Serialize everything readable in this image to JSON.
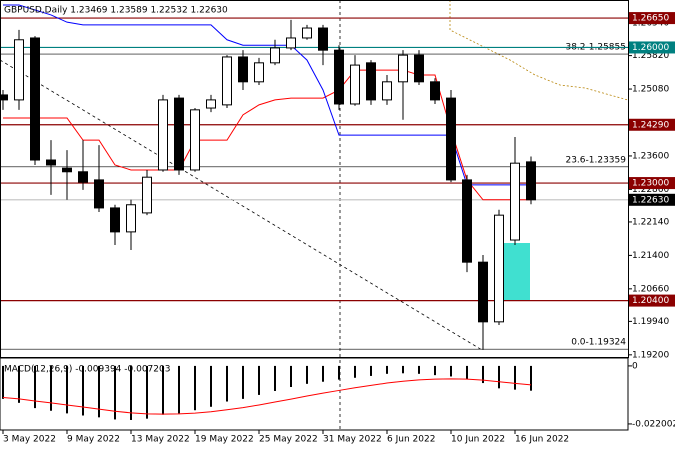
{
  "chart_data": [
    {
      "type": "candlestick",
      "title": "GBPUSD,Daily  1.23469 1.23589 1.22532 1.22630",
      "categories": [
        "3 May 2022",
        null,
        null,
        null,
        "9 May 2022",
        null,
        null,
        null,
        "13 May 2022",
        null,
        null,
        null,
        "19 May 2022",
        null,
        null,
        null,
        "25 May 2022",
        null,
        null,
        null,
        "31 May 2022",
        null,
        null,
        null,
        "6 Jun 2022",
        null,
        null,
        null,
        "10 Jun 2022",
        null,
        null,
        null,
        "16 Jun 2022",
        null
      ],
      "open": [
        1.2495,
        1.2484,
        1.2621,
        1.2351,
        1.2333,
        1.2325,
        1.2307,
        1.2245,
        1.2192,
        1.2234,
        1.2329,
        1.2488,
        1.2329,
        1.2466,
        1.2473,
        1.2579,
        1.2524,
        1.2566,
        1.2599,
        1.2621,
        1.2643,
        1.2594,
        1.2475,
        1.2566,
        1.2484,
        1.2524,
        1.2583,
        1.2524,
        1.2488,
        1.2307,
        1.2125,
        1.1993,
        1.2174,
        1.23469
      ],
      "high": [
        1.2506,
        1.2639,
        1.2625,
        1.2395,
        1.2373,
        1.2395,
        1.2384,
        1.2252,
        1.2263,
        1.2329,
        1.2495,
        1.2495,
        1.2466,
        1.2495,
        1.2583,
        1.2594,
        1.2577,
        1.2617,
        1.2661,
        1.265,
        1.265,
        1.2605,
        1.2583,
        1.2572,
        1.2539,
        1.2594,
        1.2594,
        1.2532,
        1.2506,
        1.2318,
        1.2141,
        1.2241,
        1.2402,
        1.23589
      ],
      "low": [
        1.2462,
        1.2462,
        1.234,
        1.2274,
        1.2263,
        1.2285,
        1.2236,
        1.2163,
        1.2152,
        1.2229,
        1.2325,
        1.2318,
        1.2325,
        1.2457,
        1.2466,
        1.2506,
        1.2517,
        1.2561,
        1.2594,
        1.2617,
        1.2561,
        1.2462,
        1.2471,
        1.2473,
        1.2473,
        1.244,
        1.2517,
        1.2475,
        1.2302,
        1.2103,
        1.1931,
        1.1986,
        1.2163,
        1.22532
      ],
      "close": [
        1.2484,
        1.2617,
        1.2351,
        1.234,
        1.2325,
        1.2302,
        1.2245,
        1.2192,
        1.2252,
        1.2313,
        1.2484,
        1.2329,
        1.2462,
        1.2484,
        1.2579,
        1.2524,
        1.2566,
        1.2599,
        1.2621,
        1.2643,
        1.2594,
        1.2475,
        1.2561,
        1.2484,
        1.2524,
        1.2583,
        1.2524,
        1.2484,
        1.2307,
        1.2125,
        1.1993,
        1.2229,
        1.2344,
        1.2263
      ],
      "up_color": "#ffffff",
      "down_color": "#000000",
      "series": [
        {
          "color": "#ff0000",
          "values": [
            1.2444,
            1.2444,
            1.2444,
            1.2444,
            1.2444,
            1.2395,
            1.2395,
            1.234,
            1.2329,
            1.2329,
            1.2329,
            1.2329,
            1.2395,
            1.2395,
            1.2395,
            1.2451,
            1.2473,
            1.2484,
            1.2488,
            1.2488,
            1.2488,
            1.2506,
            1.255,
            1.255,
            1.255,
            1.255,
            1.2539,
            1.2539,
            1.2417,
            1.2307,
            1.2263,
            1.2263,
            1.2263,
            1.2263
          ]
        },
        {
          "color": "#0000ff",
          "values": [
            1.2694,
            1.2694,
            1.2683,
            1.2672,
            1.2656,
            1.265,
            1.265,
            1.265,
            1.265,
            1.265,
            1.265,
            1.265,
            1.265,
            1.265,
            1.2617,
            1.2605,
            1.2605,
            1.2605,
            1.2605,
            1.2572,
            1.2506,
            1.2406,
            1.2406,
            1.2406,
            1.2406,
            1.2406,
            1.2406,
            1.2406,
            1.2406,
            1.2296,
            1.2296,
            1.2296,
            1.2296,
            1.2296
          ]
        }
      ],
      "ylim": [
        1.1913,
        1.2705
      ],
      "yticks": [
        {
          "value": 1.2654,
          "label": "1.26540"
        },
        {
          "value": 1.2582,
          "label": "1.25820"
        },
        {
          "value": 1.2508,
          "label": "1.25080"
        },
        {
          "value": 1.236,
          "label": "1.23600"
        },
        {
          "value": 1.2286,
          "label": "1.22860"
        },
        {
          "value": 1.2214,
          "label": "1.22140"
        },
        {
          "value": 1.214,
          "label": "1.21400"
        },
        {
          "value": 1.2066,
          "label": "1.20660"
        },
        {
          "value": 1.1994,
          "label": "1.19940"
        },
        {
          "value": 1.192,
          "label": "1.19200"
        }
      ],
      "hlines": [
        {
          "value": 1.2665,
          "label": "1.26650",
          "color": "#8b0000"
        },
        {
          "value": 1.26,
          "label": "1.26000",
          "color": "#008080"
        },
        {
          "value": 1.2429,
          "label": "1.24290",
          "color": "#8b0000"
        },
        {
          "value": 1.23,
          "label": "1.23000",
          "color": "#8b0000"
        },
        {
          "value": 1.2263,
          "label": "1.22630",
          "color": "#c0c0c0"
        },
        {
          "value": 1.204,
          "label": "1.20400",
          "color": "#8b0000"
        }
      ],
      "annotations": [
        {
          "value": 1.25855,
          "text": "38.2-1.25855"
        },
        {
          "value": 1.23359,
          "text": "23.6-1.23359"
        },
        {
          "value": 1.19324,
          "text": "0.0-1.19324"
        }
      ]
    },
    {
      "type": "macd",
      "label": "MACD(12,26,9) -0.009394 -0.007203",
      "values": [
        -0.0125,
        -0.014,
        -0.016,
        -0.017,
        -0.018,
        -0.0188,
        -0.0195,
        -0.0203,
        -0.0205,
        -0.02,
        -0.0185,
        -0.018,
        -0.0168,
        -0.0155,
        -0.0135,
        -0.0125,
        -0.011,
        -0.0095,
        -0.008,
        -0.0068,
        -0.006,
        -0.0052,
        -0.0045,
        -0.0038,
        -0.003,
        -0.0028,
        -0.003,
        -0.0035,
        -0.004,
        -0.005,
        -0.0065,
        -0.0085,
        -0.009,
        -0.009394
      ],
      "color": "#000000",
      "signal": [
        -0.012,
        -0.0125,
        -0.0133,
        -0.014,
        -0.0148,
        -0.0156,
        -0.0164,
        -0.0172,
        -0.0178,
        -0.0182,
        -0.0183,
        -0.0182,
        -0.0179,
        -0.0174,
        -0.0166,
        -0.0158,
        -0.0148,
        -0.0137,
        -0.0126,
        -0.0114,
        -0.0103,
        -0.0093,
        -0.0083,
        -0.0074,
        -0.0065,
        -0.0058,
        -0.0053,
        -0.005,
        -0.0049,
        -0.005,
        -0.0054,
        -0.006,
        -0.0066,
        -0.007203
      ],
      "signal_color": "#ff0000",
      "ylim": [
        -0.0243,
        0.003
      ],
      "yticks": [
        0,
        -0.022002
      ]
    }
  ]
}
